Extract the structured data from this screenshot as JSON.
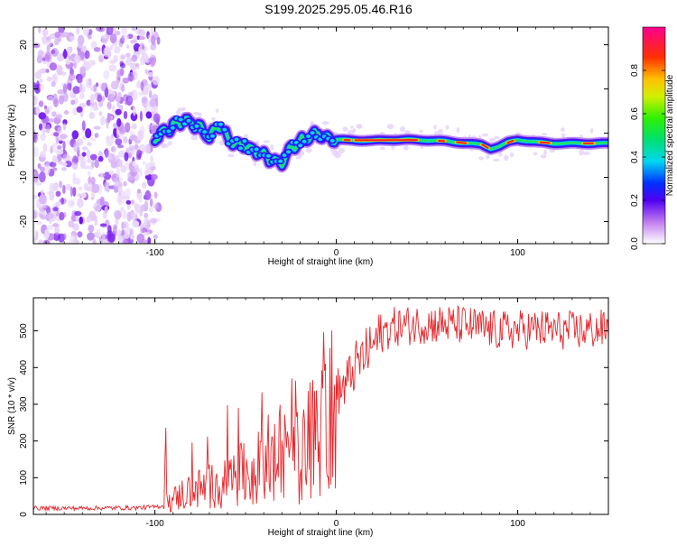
{
  "page": {
    "title": "S199.2025.295.05.46.R16"
  },
  "colors": {
    "axis": "#000000",
    "snr_line": "#e8252a",
    "background": "#ffffff"
  },
  "chart_data": [
    {
      "type": "heatmap",
      "name": "spectrogram",
      "xlabel": "Height of straight line (km)",
      "ylabel": "Frequency (Hz)",
      "xlim": [
        -167,
        150
      ],
      "ylim": [
        -25,
        24
      ],
      "xticks": [
        -100,
        0,
        100
      ],
      "yticks": [
        -20,
        -10,
        0,
        10,
        20
      ],
      "noise_region_x": [
        -167,
        -98
      ],
      "signal_track": {
        "x": [
          -100,
          -95,
          -90,
          -85,
          -80,
          -75,
          -70,
          -65,
          -60,
          -55,
          -50,
          -45,
          -40,
          -35,
          -30,
          -25,
          -20,
          -15,
          -10,
          -5,
          0,
          10,
          20,
          30,
          40,
          50,
          60,
          70,
          80,
          85,
          90,
          95,
          100,
          110,
          120,
          130,
          140,
          148
        ],
        "y": [
          -1.5,
          0.5,
          1.5,
          3,
          2.5,
          1,
          -1,
          2,
          -1,
          -2.5,
          -3,
          -4,
          -5,
          -6,
          -7,
          -3,
          -2,
          -1,
          0,
          -1,
          -1.5,
          -1.6,
          -1.7,
          -1.5,
          -1.5,
          -1.6,
          -1.8,
          -2.2,
          -2.6,
          -3.5,
          -3,
          -2,
          -1.5,
          -2,
          -2.3,
          -2.3,
          -2.3,
          -2.3
        ]
      },
      "colorbar": {
        "label": "Normalized spectral amplitude",
        "ticks": [
          0.0,
          0.2,
          0.4,
          0.6,
          0.8
        ],
        "tick_labels": [
          "0.0",
          "0.2",
          "0.4",
          "0.6",
          "0.8"
        ],
        "range": [
          0,
          1
        ]
      }
    },
    {
      "type": "line",
      "name": "snr",
      "xlabel": "Height of straight line (km)",
      "ylabel": "SNR (10 * v/v)",
      "xlim": [
        -167,
        150
      ],
      "ylim": [
        0,
        590
      ],
      "xticks": [
        -100,
        0,
        100
      ],
      "yticks": [
        0,
        100,
        200,
        300,
        400,
        500
      ],
      "trend": {
        "x": [
          -167,
          -140,
          -110,
          -100,
          -95,
          -90,
          -85,
          -80,
          -70,
          -60,
          -50,
          -40,
          -30,
          -20,
          -15,
          -10,
          -5,
          0,
          5,
          10,
          15,
          20,
          25,
          30,
          50,
          70,
          90,
          110,
          130,
          150
        ],
        "y": [
          17,
          17,
          18,
          20,
          25,
          40,
          55,
          65,
          75,
          90,
          110,
          130,
          150,
          170,
          190,
          250,
          300,
          330,
          350,
          400,
          430,
          460,
          490,
          510,
          520,
          515,
          500,
          505,
          500,
          505
        ]
      }
    }
  ]
}
